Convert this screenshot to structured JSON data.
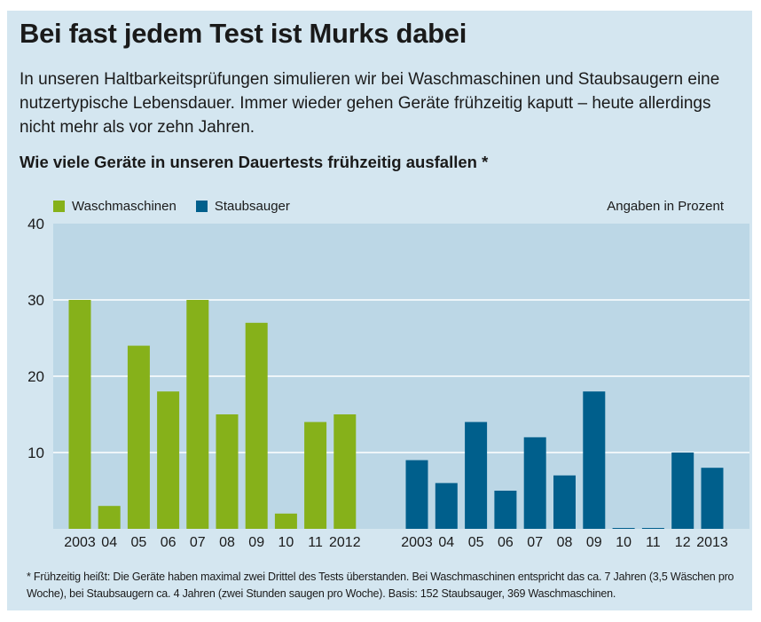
{
  "title": "Bei fast jedem Test ist Murks dabei",
  "intro": "In unseren Haltbarkeitsprüfungen simulieren wir bei Waschmaschinen und Staubsaugern eine nutzertypische Lebensdauer. Immer wieder gehen Geräte frühzeitig kaputt – heute allerdings nicht mehr als vor zehn Jahren.",
  "footnote": "* Frühzeitig heißt: Die Geräte haben maximal zwei Drittel des Tests überstanden. Bei Waschmaschinen entspricht das ca. 7 Jahren (3,5 Wäschen pro Woche), bei Staubsaugern ca. 4 Jahren (zwei Stunden saugen pro Woche). Basis: 152 Staubsauger, 369 Waschmaschinen.",
  "chart_data": {
    "type": "bar",
    "title": "Wie viele Geräte in unseren Dauertests frühzeitig ausfallen *",
    "unit_label": "Angaben in Prozent",
    "ylim": [
      0,
      40
    ],
    "yticks": [
      "10",
      "20",
      "30",
      "40"
    ],
    "grid": true,
    "legend_placement": "top-left",
    "series": [
      {
        "name": "Waschmaschinen",
        "color": "#86b11a",
        "categories": [
          "2003",
          "04",
          "05",
          "06",
          "07",
          "08",
          "09",
          "10",
          "11",
          "2012"
        ],
        "values": [
          30,
          3,
          24,
          18,
          30,
          15,
          27,
          2,
          14,
          15
        ]
      },
      {
        "name": "Staubsauger",
        "color": "#005f8c",
        "categories": [
          "2003",
          "04",
          "05",
          "06",
          "07",
          "08",
          "09",
          "10",
          "11",
          "12",
          "2013"
        ],
        "values": [
          9,
          6,
          14,
          5,
          12,
          7,
          18,
          0,
          0,
          10,
          8
        ]
      }
    ]
  }
}
